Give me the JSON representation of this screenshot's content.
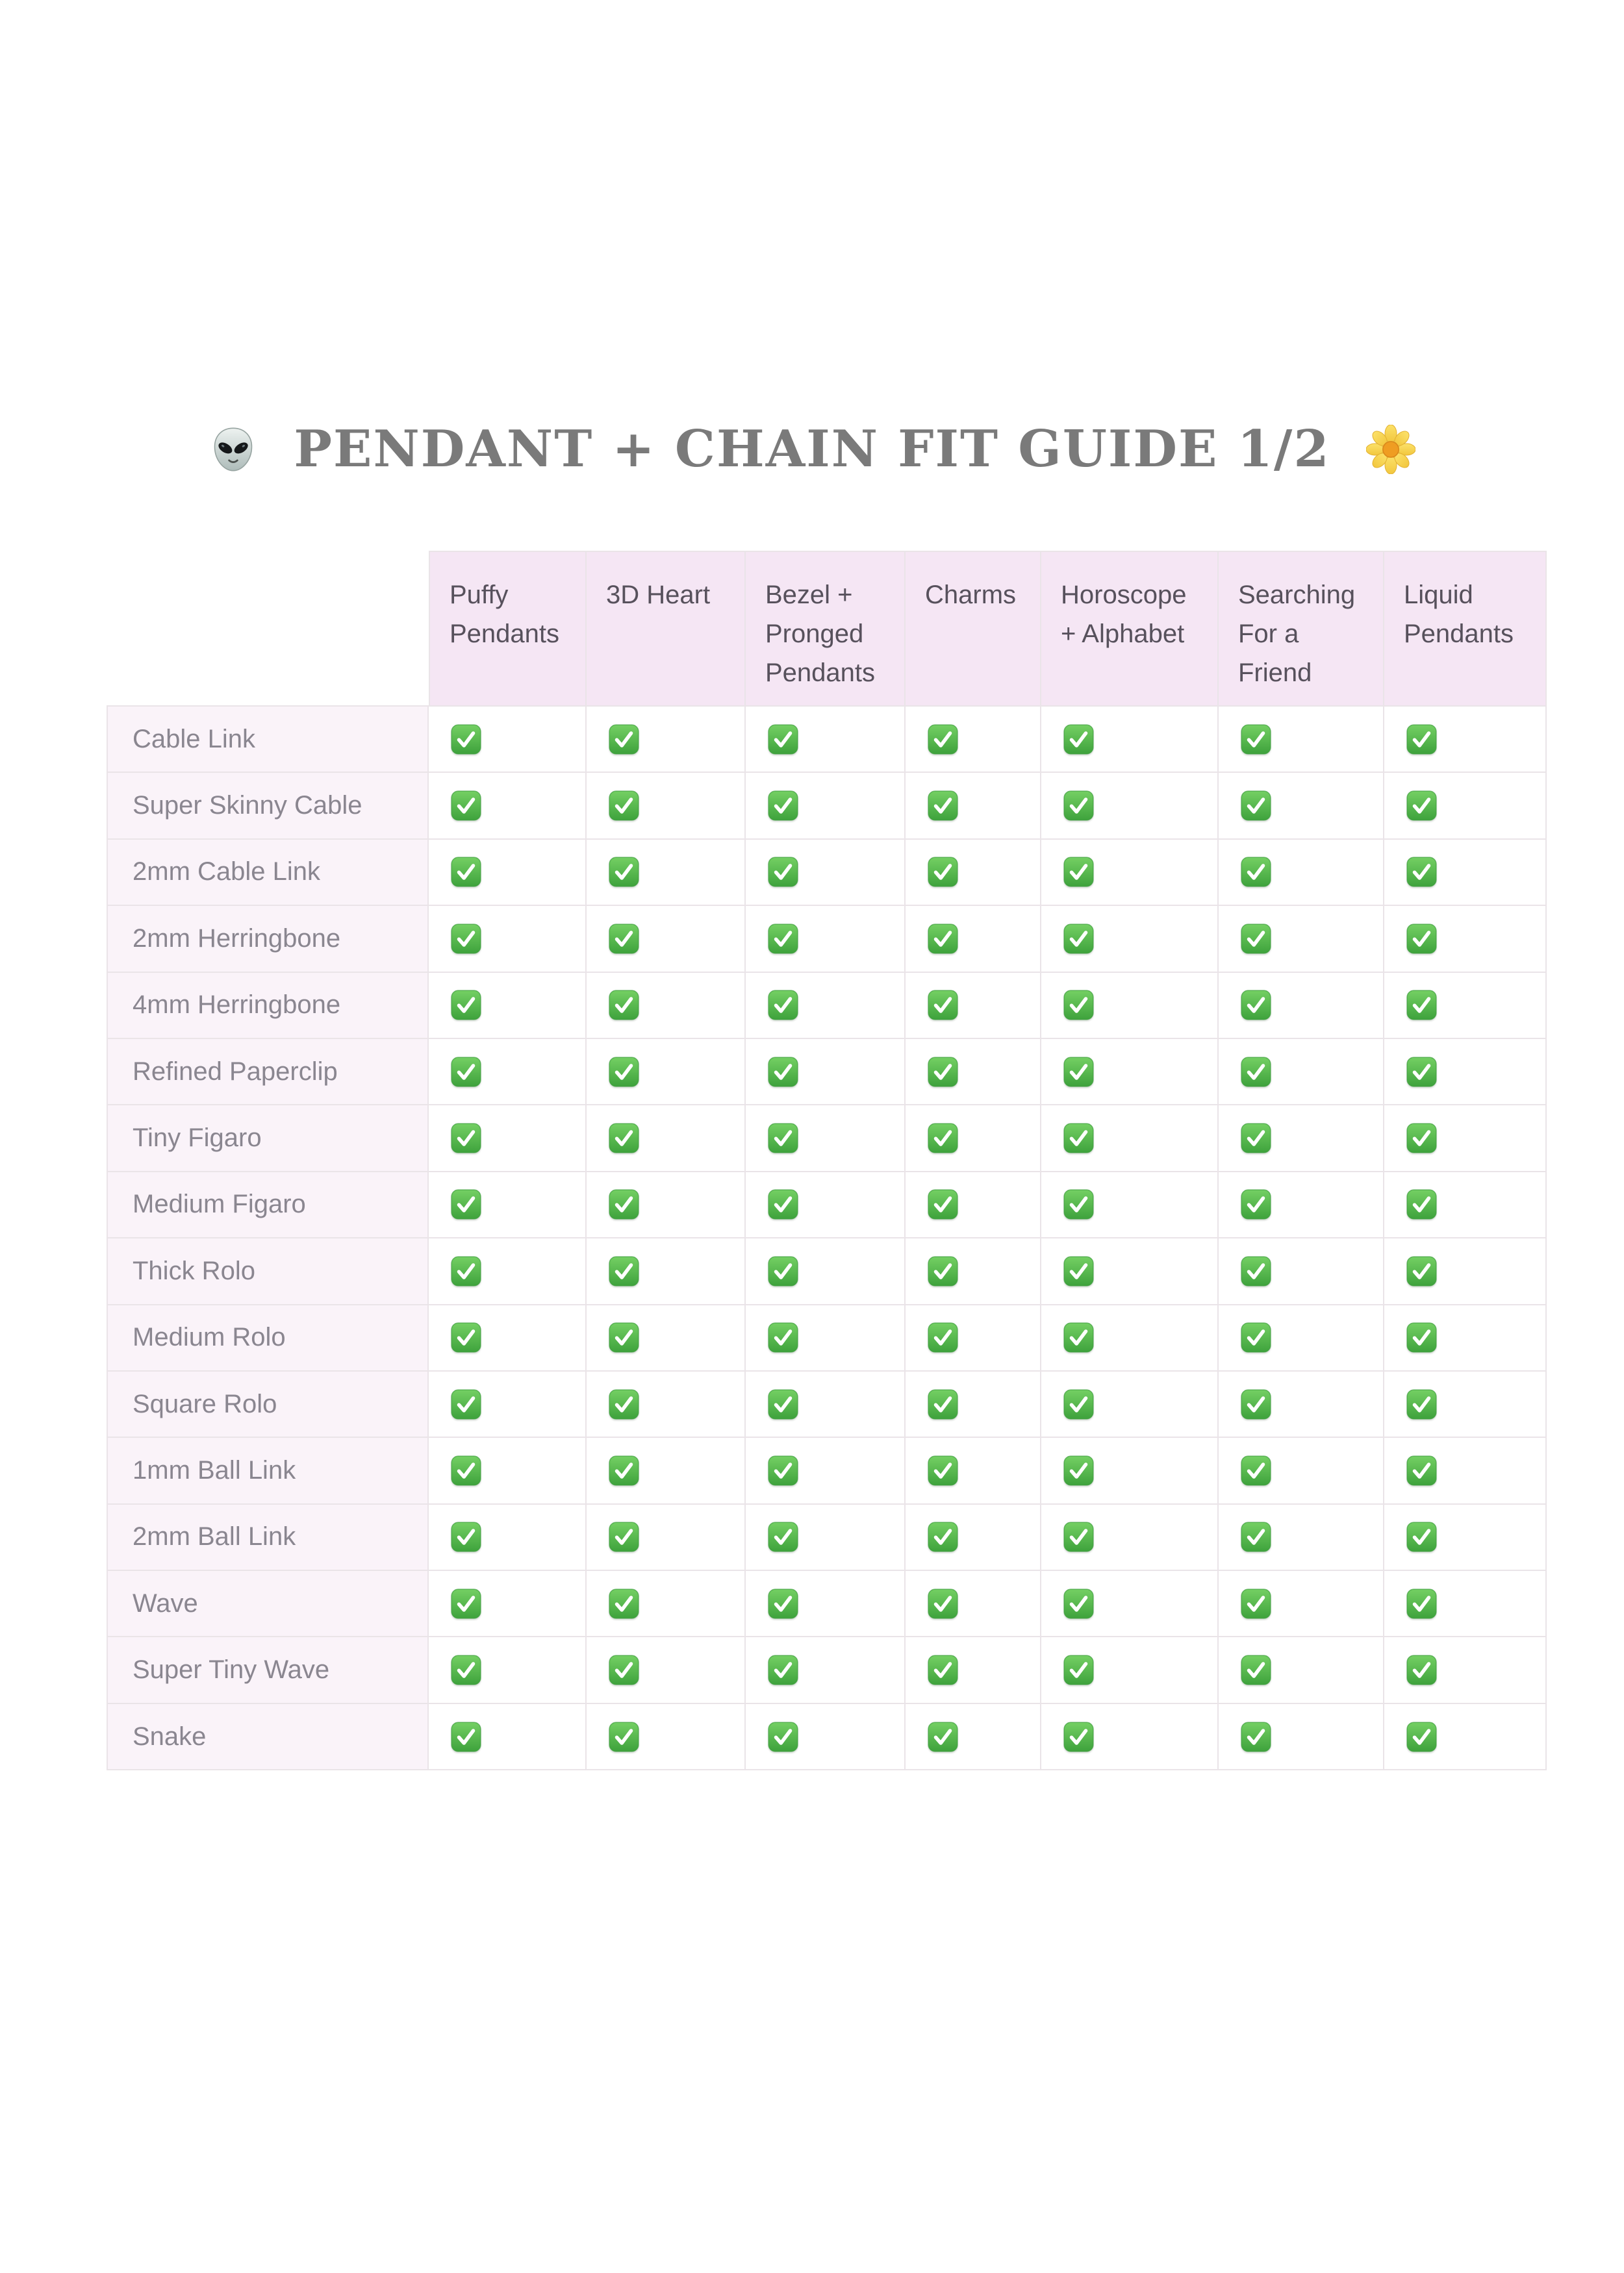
{
  "header": {
    "title": "PENDANT + CHAIN FIT GUIDE 1/2",
    "left_icon": "alien-icon",
    "right_icon": "blossom-icon"
  },
  "table": {
    "check_symbol": "✅",
    "check_icon": "green-check-icon",
    "columns": [
      "Puffy Pendants",
      "3D Heart",
      "Bezel + Pronged Pendants",
      "Charms",
      "Horoscope + Alphabet",
      "Searching For a Friend",
      "Liquid Pendants"
    ],
    "rows": [
      {
        "label": "Cable Link",
        "checks": [
          true,
          true,
          true,
          true,
          true,
          true,
          true
        ]
      },
      {
        "label": "Super Skinny Cable",
        "checks": [
          true,
          true,
          true,
          true,
          true,
          true,
          true
        ]
      },
      {
        "label": "2mm Cable Link",
        "checks": [
          true,
          true,
          true,
          true,
          true,
          true,
          true
        ]
      },
      {
        "label": "2mm Herringbone",
        "checks": [
          true,
          true,
          true,
          true,
          true,
          true,
          true
        ]
      },
      {
        "label": "4mm Herringbone",
        "checks": [
          true,
          true,
          true,
          true,
          true,
          true,
          true
        ]
      },
      {
        "label": "Refined Paperclip",
        "checks": [
          true,
          true,
          true,
          true,
          true,
          true,
          true
        ]
      },
      {
        "label": "Tiny Figaro",
        "checks": [
          true,
          true,
          true,
          true,
          true,
          true,
          true
        ]
      },
      {
        "label": "Medium Figaro",
        "checks": [
          true,
          true,
          true,
          true,
          true,
          true,
          true
        ]
      },
      {
        "label": "Thick Rolo",
        "checks": [
          true,
          true,
          true,
          true,
          true,
          true,
          true
        ]
      },
      {
        "label": "Medium Rolo",
        "checks": [
          true,
          true,
          true,
          true,
          true,
          true,
          true
        ]
      },
      {
        "label": "Square Rolo",
        "checks": [
          true,
          true,
          true,
          true,
          true,
          true,
          true
        ]
      },
      {
        "label": "1mm Ball Link",
        "checks": [
          true,
          true,
          true,
          true,
          true,
          true,
          true
        ]
      },
      {
        "label": "2mm Ball Link",
        "checks": [
          true,
          true,
          true,
          true,
          true,
          true,
          true
        ]
      },
      {
        "label": "Wave",
        "checks": [
          true,
          true,
          true,
          true,
          true,
          true,
          true
        ]
      },
      {
        "label": "Super Tiny Wave",
        "checks": [
          true,
          true,
          true,
          true,
          true,
          true,
          true
        ]
      },
      {
        "label": "Snake",
        "checks": [
          true,
          true,
          true,
          true,
          true,
          true,
          true
        ]
      }
    ]
  },
  "colors": {
    "header_bg": "#f5e6f4",
    "label_bg": "#faf3f9",
    "border": "#eae4e8",
    "header_text": "#57515c",
    "label_text": "#8a8690",
    "title_text": "#7a7a7a",
    "check_green": "#4aa845"
  }
}
